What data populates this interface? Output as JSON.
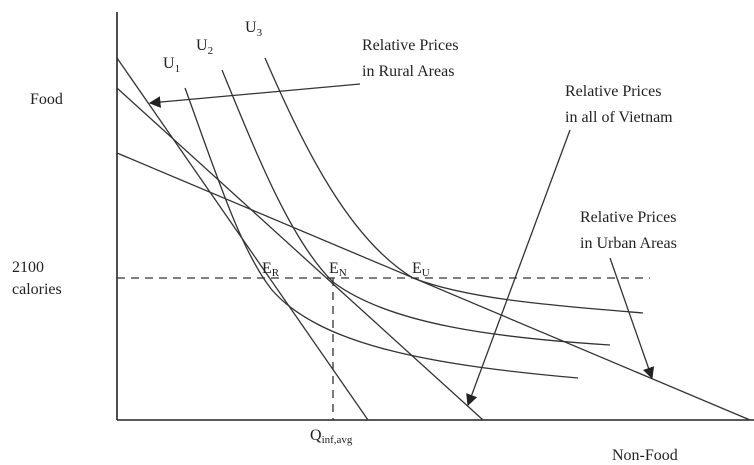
{
  "axes": {
    "y_label": "Food",
    "x_label": "Non-Food"
  },
  "reference": {
    "y_label_lines": [
      "2100",
      "calories"
    ],
    "x_label": {
      "base": "Q",
      "sub": "inf,avg"
    }
  },
  "curves": [
    {
      "base": "U",
      "sub": "1"
    },
    {
      "base": "U",
      "sub": "2"
    },
    {
      "base": "U",
      "sub": "3"
    }
  ],
  "price_lines": [
    {
      "label_lines": [
        "Relative Prices",
        "in Rural Areas"
      ]
    },
    {
      "label_lines": [
        "Relative Prices",
        "in all of Vietnam"
      ]
    },
    {
      "label_lines": [
        "Relative Prices",
        "in Urban Areas"
      ]
    }
  ],
  "equilibria": [
    {
      "base": "E",
      "sub": "R"
    },
    {
      "base": "E",
      "sub": "N"
    },
    {
      "base": "E",
      "sub": "U"
    }
  ]
}
